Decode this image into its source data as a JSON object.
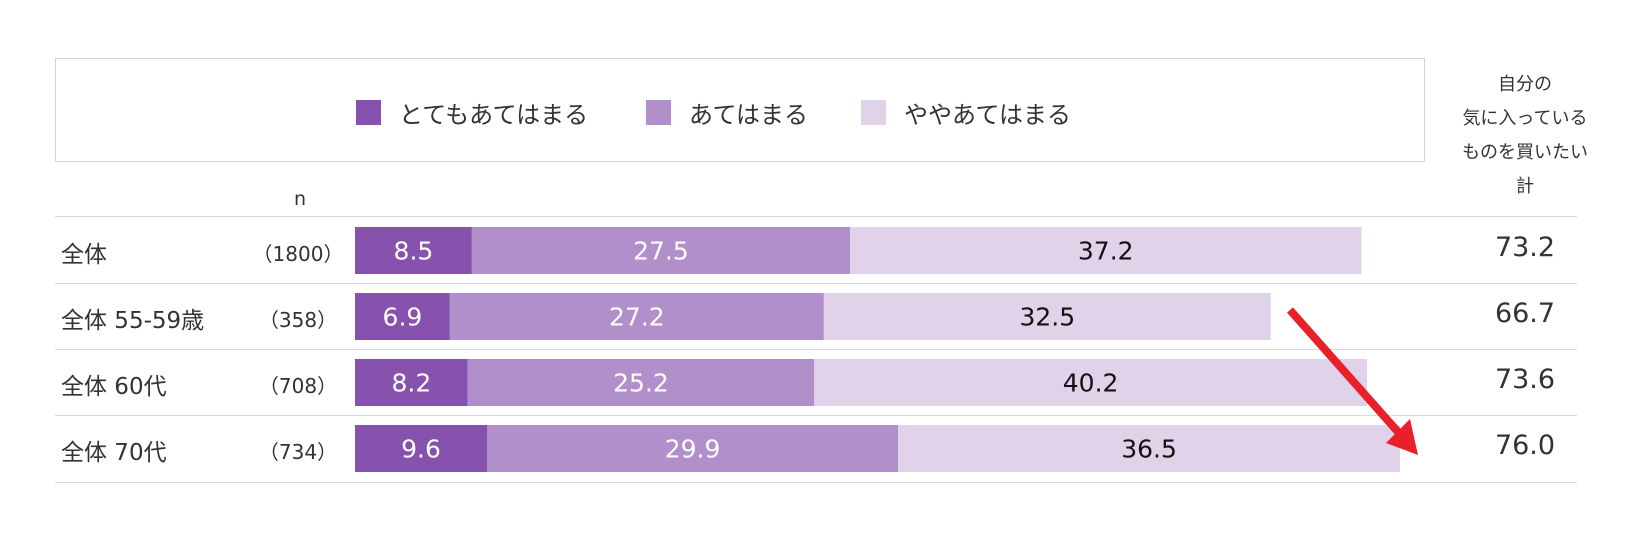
{
  "chart_data": {
    "type": "bar",
    "stacked": true,
    "orientation": "horizontal",
    "n_header": "n",
    "total_header": [
      "自分の",
      "気に入っている",
      "ものを買いたい",
      "計"
    ],
    "categories": [
      "全体",
      "全体 55-59歳",
      "全体 60代",
      "全体 70代"
    ],
    "n_labels": [
      "（1800）",
      "（358）",
      "（708）",
      "（734）"
    ],
    "series": [
      {
        "name": "とてもあてはまる",
        "color": "#8652ad",
        "values": [
          8.5,
          6.9,
          8.2,
          9.6
        ]
      },
      {
        "name": "あてはまる",
        "color": "#b18fca",
        "values": [
          27.5,
          27.2,
          25.2,
          29.9
        ]
      },
      {
        "name": "ややあてはまる",
        "color": "#e0d3e9",
        "values": [
          37.2,
          32.5,
          40.2,
          36.5
        ]
      }
    ],
    "totals": [
      "73.2",
      "66.7",
      "73.6",
      "76.0"
    ],
    "xlim": [
      0,
      100
    ],
    "legend": "top",
    "grid": false,
    "annotation_arrow_color": "#e8202a"
  }
}
